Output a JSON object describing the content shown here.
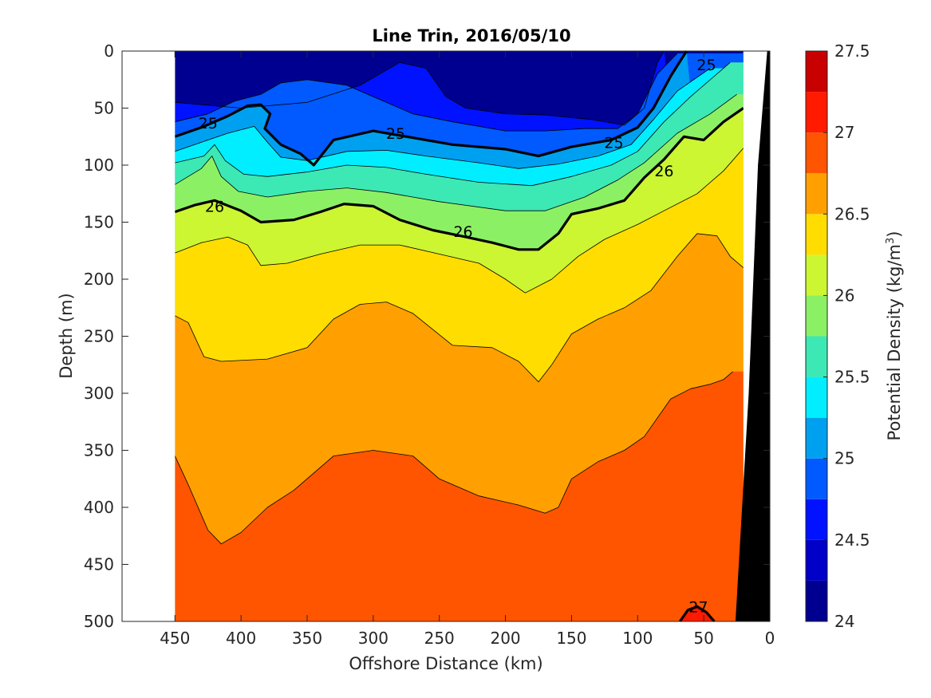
{
  "chart_data": {
    "type": "contour",
    "title": "Line Trin, 2016/05/10",
    "xlabel": "Offshore Distance (km)",
    "ylabel": "Depth (m)",
    "xlim": [
      490,
      0
    ],
    "ylim": [
      500,
      0
    ],
    "x_reversed": true,
    "y_reversed": true,
    "x_ticks": [
      450,
      400,
      350,
      300,
      250,
      200,
      150,
      100,
      50,
      0
    ],
    "y_ticks": [
      0,
      50,
      100,
      150,
      200,
      250,
      300,
      350,
      400,
      450,
      500
    ],
    "colorbar": {
      "label_prefix": "Potential Density (kg/m",
      "label_sup": "3",
      "label_suffix": ")",
      "range": [
        24,
        27.5
      ],
      "ticks": [
        24,
        24.5,
        25,
        25.5,
        26,
        26.5,
        27,
        27.5
      ],
      "levels": [
        {
          "from": 24.0,
          "to": 24.25,
          "color": "#000090"
        },
        {
          "from": 24.25,
          "to": 24.5,
          "color": "#0000C8"
        },
        {
          "from": 24.5,
          "to": 24.75,
          "color": "#0012FF"
        },
        {
          "from": 24.75,
          "to": 25.0,
          "color": "#005AFF"
        },
        {
          "from": 25.0,
          "to": 25.25,
          "color": "#00A0F0"
        },
        {
          "from": 25.25,
          "to": 25.5,
          "color": "#00EEFF"
        },
        {
          "from": 25.5,
          "to": 25.75,
          "color": "#3CE8B4"
        },
        {
          "from": 25.75,
          "to": 26.0,
          "color": "#8CF064"
        },
        {
          "from": 26.0,
          "to": 26.25,
          "color": "#CCF532"
        },
        {
          "from": 26.25,
          "to": 26.5,
          "color": "#FFDD00"
        },
        {
          "from": 26.5,
          "to": 26.75,
          "color": "#FFA000"
        },
        {
          "from": 26.75,
          "to": 27.0,
          "color": "#FF5500"
        },
        {
          "from": 27.0,
          "to": 27.25,
          "color": "#FF1A00"
        },
        {
          "from": 27.25,
          "to": 27.5,
          "color": "#C80000"
        }
      ]
    },
    "data_extent_km": [
      450,
      20
    ],
    "isopycnals": [
      {
        "level": 24.5,
        "points": [
          [
            450,
            45
          ],
          [
            420,
            48
          ],
          [
            400,
            50
          ],
          [
            380,
            48
          ],
          [
            350,
            45
          ],
          [
            310,
            30
          ],
          [
            280,
            10
          ],
          [
            260,
            15
          ],
          [
            245,
            40
          ],
          [
            230,
            50
          ],
          [
            200,
            55
          ],
          [
            170,
            56
          ],
          [
            135,
            60
          ],
          [
            110,
            65
          ],
          [
            95,
            50
          ],
          [
            85,
            10
          ],
          [
            80,
            0
          ]
        ]
      },
      {
        "level": 24.75,
        "points": [
          [
            450,
            62
          ],
          [
            425,
            55
          ],
          [
            405,
            44
          ],
          [
            385,
            38
          ],
          [
            370,
            28
          ],
          [
            350,
            25
          ],
          [
            320,
            30
          ],
          [
            300,
            40
          ],
          [
            270,
            55
          ],
          [
            240,
            62
          ],
          [
            200,
            70
          ],
          [
            170,
            70
          ],
          [
            140,
            68
          ],
          [
            115,
            68
          ],
          [
            100,
            55
          ],
          [
            85,
            20
          ],
          [
            70,
            2
          ]
        ]
      },
      {
        "level": 25,
        "points": [
          [
            450,
            75
          ],
          [
            430,
            67
          ],
          [
            410,
            57
          ],
          [
            395,
            48
          ],
          [
            385,
            47
          ],
          [
            378,
            55
          ],
          [
            382,
            68
          ],
          [
            370,
            82
          ],
          [
            355,
            90
          ],
          [
            345,
            100
          ],
          [
            330,
            78
          ],
          [
            300,
            70
          ],
          [
            270,
            76
          ],
          [
            240,
            82
          ],
          [
            200,
            86
          ],
          [
            175,
            92
          ],
          [
            150,
            84
          ],
          [
            120,
            78
          ],
          [
            100,
            67
          ],
          [
            88,
            50
          ],
          [
            75,
            22
          ],
          [
            63,
            0
          ]
        ]
      },
      {
        "level": 25.25,
        "points": [
          [
            450,
            88
          ],
          [
            430,
            80
          ],
          [
            410,
            72
          ],
          [
            390,
            66
          ],
          [
            380,
            80
          ],
          [
            370,
            93
          ],
          [
            350,
            96
          ],
          [
            320,
            88
          ],
          [
            290,
            87
          ],
          [
            260,
            92
          ],
          [
            220,
            98
          ],
          [
            190,
            103
          ],
          [
            160,
            99
          ],
          [
            130,
            92
          ],
          [
            105,
            82
          ],
          [
            88,
            60
          ],
          [
            70,
            35
          ],
          [
            45,
            15
          ]
        ]
      },
      {
        "level": 25.5,
        "points": [
          [
            450,
            98
          ],
          [
            428,
            92
          ],
          [
            420,
            82
          ],
          [
            412,
            96
          ],
          [
            398,
            108
          ],
          [
            380,
            110
          ],
          [
            350,
            106
          ],
          [
            320,
            100
          ],
          [
            290,
            102
          ],
          [
            260,
            108
          ],
          [
            220,
            115
          ],
          [
            180,
            118
          ],
          [
            150,
            110
          ],
          [
            120,
            100
          ],
          [
            100,
            88
          ],
          [
            80,
            62
          ],
          [
            60,
            40
          ],
          [
            30,
            10
          ]
        ]
      },
      {
        "level": 25.75,
        "points": [
          [
            450,
            117
          ],
          [
            430,
            103
          ],
          [
            422,
            92
          ],
          [
            415,
            110
          ],
          [
            402,
            123
          ],
          [
            380,
            128
          ],
          [
            350,
            123
          ],
          [
            320,
            120
          ],
          [
            290,
            124
          ],
          [
            250,
            132
          ],
          [
            200,
            140
          ],
          [
            170,
            140
          ],
          [
            140,
            128
          ],
          [
            115,
            113
          ],
          [
            95,
            98
          ],
          [
            70,
            72
          ],
          [
            45,
            55
          ],
          [
            25,
            38
          ]
        ]
      },
      {
        "level": 26,
        "points": [
          [
            450,
            141
          ],
          [
            435,
            135
          ],
          [
            420,
            131
          ],
          [
            400,
            140
          ],
          [
            385,
            150
          ],
          [
            360,
            148
          ],
          [
            340,
            141
          ],
          [
            322,
            134
          ],
          [
            300,
            136
          ],
          [
            280,
            148
          ],
          [
            255,
            157
          ],
          [
            230,
            163
          ],
          [
            210,
            168
          ],
          [
            190,
            174
          ],
          [
            175,
            174
          ],
          [
            160,
            160
          ],
          [
            150,
            143
          ],
          [
            130,
            138
          ],
          [
            110,
            131
          ],
          [
            95,
            111
          ],
          [
            80,
            95
          ],
          [
            65,
            75
          ],
          [
            50,
            78
          ],
          [
            35,
            62
          ],
          [
            20,
            50
          ]
        ]
      },
      {
        "level": 26.25,
        "points": [
          [
            450,
            177
          ],
          [
            430,
            168
          ],
          [
            410,
            163
          ],
          [
            395,
            170
          ],
          [
            385,
            188
          ],
          [
            365,
            186
          ],
          [
            340,
            178
          ],
          [
            310,
            170
          ],
          [
            280,
            170
          ],
          [
            250,
            178
          ],
          [
            220,
            186
          ],
          [
            200,
            200
          ],
          [
            185,
            212
          ],
          [
            165,
            200
          ],
          [
            145,
            180
          ],
          [
            125,
            165
          ],
          [
            100,
            152
          ],
          [
            80,
            140
          ],
          [
            55,
            125
          ],
          [
            35,
            105
          ],
          [
            20,
            85
          ]
        ]
      },
      {
        "level": 26.5,
        "points": [
          [
            450,
            232
          ],
          [
            440,
            238
          ],
          [
            428,
            268
          ],
          [
            415,
            272
          ],
          [
            380,
            270
          ],
          [
            350,
            260
          ],
          [
            330,
            235
          ],
          [
            310,
            222
          ],
          [
            290,
            220
          ],
          [
            270,
            230
          ],
          [
            240,
            258
          ],
          [
            210,
            260
          ],
          [
            190,
            272
          ],
          [
            175,
            290
          ],
          [
            165,
            275
          ],
          [
            150,
            248
          ],
          [
            130,
            235
          ],
          [
            110,
            225
          ],
          [
            90,
            210
          ],
          [
            70,
            180
          ],
          [
            55,
            160
          ],
          [
            40,
            162
          ],
          [
            30,
            180
          ],
          [
            20,
            190
          ]
        ]
      },
      {
        "level": 26.75,
        "points": [
          [
            450,
            355
          ],
          [
            440,
            380
          ],
          [
            425,
            420
          ],
          [
            415,
            432
          ],
          [
            400,
            422
          ],
          [
            380,
            400
          ],
          [
            360,
            385
          ],
          [
            330,
            355
          ],
          [
            300,
            350
          ],
          [
            270,
            355
          ],
          [
            250,
            375
          ],
          [
            220,
            390
          ],
          [
            190,
            398
          ],
          [
            170,
            405
          ],
          [
            160,
            400
          ],
          [
            150,
            375
          ],
          [
            130,
            360
          ],
          [
            110,
            350
          ],
          [
            95,
            338
          ],
          [
            75,
            305
          ],
          [
            60,
            296
          ],
          [
            45,
            292
          ],
          [
            35,
            288
          ],
          [
            28,
            281
          ]
        ]
      },
      {
        "level": 27,
        "points": [
          [
            68,
            500
          ],
          [
            62,
            490
          ],
          [
            55,
            487
          ],
          [
            48,
            492
          ],
          [
            42,
            500
          ]
        ]
      }
    ],
    "contour_labels": [
      {
        "text": "25",
        "x": 425,
        "y": 63
      },
      {
        "text": "25",
        "x": 283,
        "y": 72
      },
      {
        "text": "25",
        "x": 118,
        "y": 80
      },
      {
        "text": "25",
        "x": 48,
        "y": 12
      },
      {
        "text": "26",
        "x": 420,
        "y": 136
      },
      {
        "text": "26",
        "x": 232,
        "y": 158
      },
      {
        "text": "26",
        "x": 80,
        "y": 105
      },
      {
        "text": "27",
        "x": 54,
        "y": 487
      }
    ],
    "bottom_profile": [
      [
        26,
        500
      ],
      [
        16,
        300
      ],
      [
        9,
        100
      ],
      [
        2,
        0
      ],
      [
        0,
        0
      ],
      [
        0,
        500
      ]
    ]
  }
}
